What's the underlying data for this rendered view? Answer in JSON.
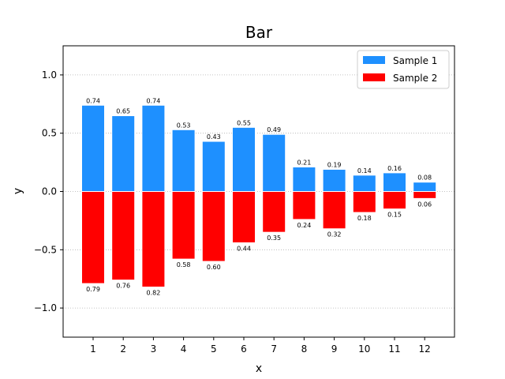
{
  "chart_data": {
    "type": "bar",
    "title": "Bar",
    "xlabel": "x",
    "ylabel": "y",
    "categories": [
      "1",
      "2",
      "3",
      "4",
      "5",
      "6",
      "7",
      "8",
      "9",
      "10",
      "11",
      "12"
    ],
    "series": [
      {
        "name": "Sample 1",
        "color": "#1e90ff",
        "values": [
          0.74,
          0.65,
          0.74,
          0.53,
          0.43,
          0.55,
          0.49,
          0.21,
          0.19,
          0.14,
          0.16,
          0.08
        ],
        "labels": [
          "0.74",
          "0.65",
          "0.74",
          "0.53",
          "0.43",
          "0.55",
          "0.49",
          "0.21",
          "0.19",
          "0.14",
          "0.16",
          "0.08"
        ]
      },
      {
        "name": "Sample 2",
        "color": "#ff0000",
        "values": [
          -0.79,
          -0.76,
          -0.82,
          -0.58,
          -0.6,
          -0.44,
          -0.35,
          -0.24,
          -0.32,
          -0.18,
          -0.15,
          -0.06
        ],
        "labels": [
          "0.79",
          "0.76",
          "0.82",
          "0.58",
          "0.60",
          "0.44",
          "0.35",
          "0.24",
          "0.32",
          "0.18",
          "0.15",
          "0.06"
        ]
      }
    ],
    "ylim": [
      -1.25,
      1.25
    ],
    "yticks": [
      -1.0,
      -0.5,
      0.0,
      0.5,
      1.0
    ],
    "ytick_labels": [
      "−1.0",
      "−0.5",
      "0.0",
      "0.5",
      "1.0"
    ],
    "grid": "y-dotted",
    "legend_position": "top-right"
  }
}
